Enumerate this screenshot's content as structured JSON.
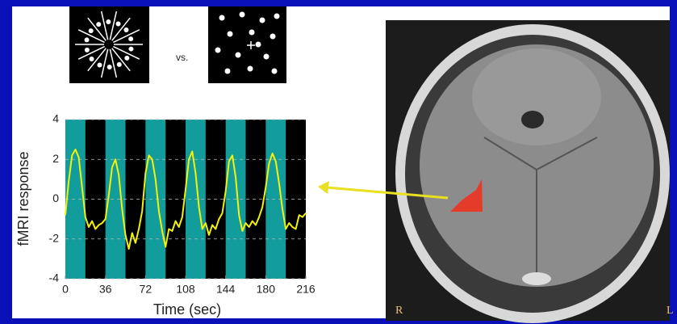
{
  "chart_data": {
    "type": "line",
    "x_label": "Time (sec)",
    "y_label": "fMRI response",
    "stimulus_separator": "vs.",
    "brain_left_marker": "R",
    "brain_right_marker": "L",
    "x": [
      0,
      3,
      6,
      9,
      12,
      15,
      18,
      21,
      24,
      27,
      30,
      33,
      36,
      39,
      42,
      45,
      48,
      51,
      54,
      57,
      60,
      63,
      66,
      69,
      72,
      75,
      78,
      81,
      84,
      87,
      90,
      93,
      96,
      99,
      102,
      105,
      108,
      111,
      114,
      117,
      120,
      123,
      126,
      129,
      132,
      135,
      138,
      141,
      144,
      147,
      150,
      153,
      156,
      159,
      162,
      165,
      168,
      171,
      174,
      177,
      180,
      183,
      186,
      189,
      192,
      195,
      198,
      201,
      204,
      207,
      210,
      213,
      216
    ],
    "series": [
      {
        "color": "#f2f20a",
        "values": [
          -0.8,
          0.9,
          2.2,
          2.5,
          2.1,
          0.6,
          -0.9,
          -1.4,
          -1.1,
          -1.5,
          -1.3,
          -1.2,
          -1.0,
          0.2,
          1.6,
          2.0,
          1.2,
          -0.5,
          -1.8,
          -2.5,
          -1.7,
          -2.2,
          -1.5,
          -0.6,
          1.3,
          2.2,
          2.0,
          1.0,
          -0.6,
          -1.6,
          -2.4,
          -1.5,
          -1.6,
          -1.1,
          -1.4,
          -0.9,
          0.5,
          2.0,
          2.4,
          1.3,
          -0.4,
          -1.5,
          -1.2,
          -1.8,
          -1.3,
          -1.5,
          -1.0,
          -0.7,
          0.4,
          1.9,
          2.2,
          1.1,
          -0.8,
          -1.6,
          -1.2,
          -1.4,
          -1.1,
          -1.3,
          -0.9,
          -0.4,
          0.6,
          1.8,
          2.3,
          1.9,
          0.8,
          -0.5,
          -1.5,
          -1.2,
          -1.4,
          -1.5,
          -0.8,
          -0.9,
          -0.7
        ]
      }
    ],
    "bands": [
      [
        0,
        18
      ],
      [
        36,
        54
      ],
      [
        72,
        90
      ],
      [
        108,
        126
      ],
      [
        144,
        162
      ],
      [
        180,
        198
      ]
    ],
    "band_color": "#139c9c",
    "background": "#000000",
    "xlim": [
      0,
      216
    ],
    "xticks": [
      0,
      36,
      72,
      108,
      144,
      180,
      216
    ],
    "ylim": [
      -4,
      4
    ],
    "yticks": [
      -4,
      -2,
      0,
      2,
      4
    ],
    "grid": true
  }
}
